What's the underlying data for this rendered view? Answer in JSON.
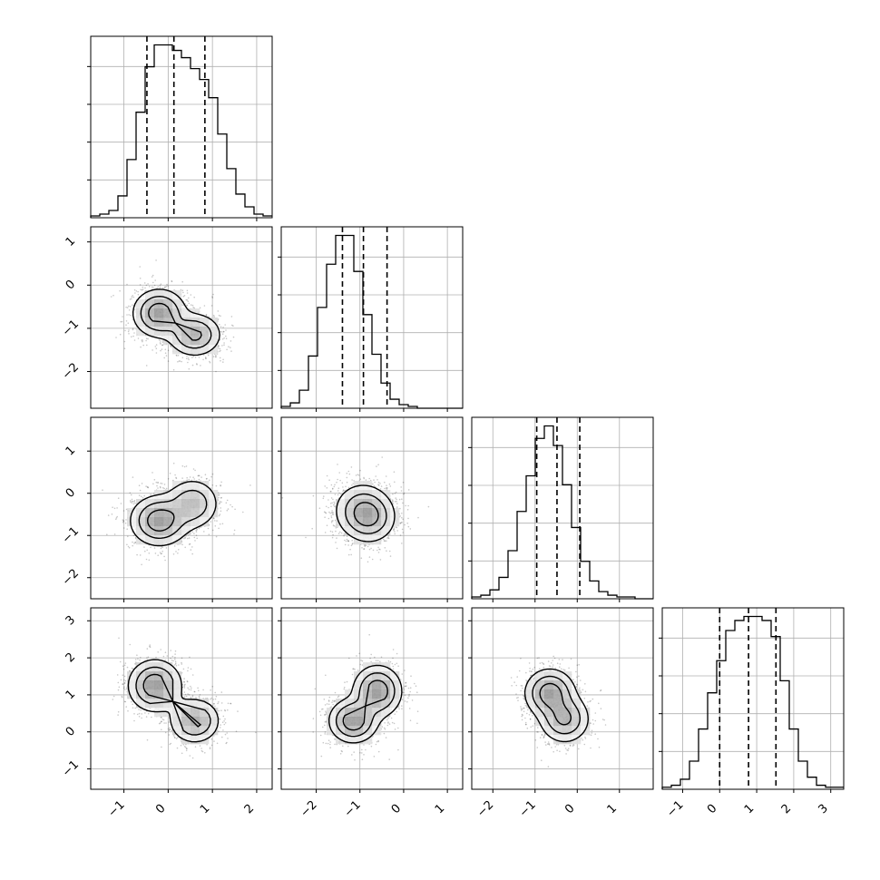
{
  "chart_data": {
    "type": "corner",
    "n_params": 4,
    "parameters": [
      {
        "label": "",
        "range": [
          -1.75,
          2.35
        ],
        "ticks": [
          -1,
          0,
          1,
          2
        ],
        "tick_labels": [
          "−1",
          "0",
          "1",
          "2"
        ],
        "quantiles": [
          -0.48,
          0.13,
          0.83
        ]
      },
      {
        "label": "",
        "range": [
          -2.8,
          1.35
        ],
        "ticks": [
          -2,
          -1,
          0,
          1
        ],
        "tick_labels": [
          "−2",
          "−1",
          "0",
          "1"
        ],
        "quantiles": [
          -1.4,
          -0.92,
          -0.38
        ]
      },
      {
        "label": "",
        "range": [
          -2.5,
          1.8
        ],
        "ticks": [
          -2,
          -1,
          0,
          1
        ],
        "tick_labels": [
          "−2",
          "−1",
          "0",
          "1"
        ],
        "quantiles": [
          -0.96,
          -0.48,
          0.06
        ]
      },
      {
        "label": "",
        "range": [
          -1.55,
          3.35
        ],
        "ticks": [
          -1,
          0,
          1,
          2,
          3
        ],
        "tick_labels": [
          "−1",
          "0",
          "1",
          "2",
          "3"
        ],
        "quantiles": [
          0.0,
          0.78,
          1.52
        ]
      }
    ],
    "histograms": [
      {
        "edges_start": -1.75,
        "bin_width": 0.205,
        "counts": [
          1,
          2,
          4,
          12,
          32,
          58,
          83,
          95,
          95,
          92,
          88,
          82,
          76,
          66,
          46,
          27,
          13,
          6,
          2,
          1
        ]
      },
      {
        "edges_start": -2.8,
        "bin_width": 0.2075,
        "counts": [
          1,
          3,
          10,
          29,
          56,
          80,
          96,
          96,
          76,
          52,
          30,
          14,
          5,
          2,
          1,
          0,
          0,
          0,
          0,
          0
        ]
      },
      {
        "edges_start": -2.5,
        "bin_width": 0.215,
        "counts": [
          1,
          2,
          5,
          12,
          27,
          49,
          69,
          90,
          97,
          86,
          64,
          40,
          21,
          10,
          4,
          2,
          1,
          1,
          0,
          0
        ]
      },
      {
        "edges_start": -1.55,
        "bin_width": 0.245,
        "counts": [
          1,
          2,
          5,
          14,
          30,
          48,
          64,
          79,
          84,
          86,
          86,
          84,
          76,
          54,
          30,
          14,
          6,
          2,
          1,
          1
        ]
      }
    ],
    "pairs": [
      {
        "x": 0,
        "y": 1,
        "ylim": [
          -2.85,
          1.35
        ],
        "yticks": [
          -2,
          -1,
          0,
          1
        ],
        "ytick_labels": [
          "−2",
          "−1",
          "0",
          "1"
        ],
        "modes": [
          {
            "x": -0.2,
            "y": -0.65,
            "sx": 0.3,
            "sy": 0.28,
            "w": 0.55
          },
          {
            "x": 0.6,
            "y": -1.15,
            "sx": 0.3,
            "sy": 0.25,
            "w": 0.45
          }
        ]
      },
      {
        "x": 0,
        "y": 2,
        "ylim": [
          -2.5,
          1.8
        ],
        "yticks": [
          -2,
          -1,
          0,
          1
        ],
        "ytick_labels": [
          "−2",
          "−1",
          "0",
          "1"
        ],
        "modes": [
          {
            "x": -0.2,
            "y": -0.65,
            "sx": 0.33,
            "sy": 0.3,
            "w": 0.6
          },
          {
            "x": 0.55,
            "y": -0.25,
            "sx": 0.3,
            "sy": 0.3,
            "w": 0.4
          }
        ]
      },
      {
        "x": 1,
        "y": 2,
        "ylim": [
          -2.5,
          1.8
        ],
        "yticks": [
          -2,
          -1,
          0,
          1
        ],
        "ytick_labels": [
          "−2",
          "−1",
          "0",
          "1"
        ],
        "modes": [
          {
            "x": -0.95,
            "y": -0.4,
            "sx": 0.33,
            "sy": 0.33,
            "w": 0.55
          },
          {
            "x": -0.75,
            "y": -0.6,
            "sx": 0.3,
            "sy": 0.3,
            "w": 0.45
          }
        ]
      },
      {
        "x": 0,
        "y": 3,
        "ylim": [
          -1.55,
          3.35
        ],
        "yticks": [
          -1,
          0,
          1,
          2,
          3
        ],
        "ytick_labels": [
          "−1",
          "0",
          "1",
          "2",
          "3"
        ],
        "modes": [
          {
            "x": -0.3,
            "y": 1.25,
            "sx": 0.3,
            "sy": 0.35,
            "w": 0.55
          },
          {
            "x": 0.6,
            "y": 0.3,
            "sx": 0.28,
            "sy": 0.3,
            "w": 0.45
          }
        ]
      },
      {
        "x": 1,
        "y": 3,
        "ylim": [
          -1.55,
          3.35
        ],
        "yticks": [
          -1,
          0,
          1,
          2,
          3
        ],
        "ytick_labels": [
          "−1",
          "0",
          "1",
          "2",
          "3"
        ],
        "modes": [
          {
            "x": -1.15,
            "y": 0.3,
            "sx": 0.28,
            "sy": 0.3,
            "w": 0.5
          },
          {
            "x": -0.6,
            "y": 1.1,
            "sx": 0.28,
            "sy": 0.35,
            "w": 0.5
          }
        ]
      },
      {
        "x": 2,
        "y": 3,
        "ylim": [
          -1.55,
          3.35
        ],
        "yticks": [
          -1,
          0,
          1,
          2,
          3
        ],
        "ytick_labels": [
          "−1",
          "0",
          "1",
          "2",
          "3"
        ],
        "modes": [
          {
            "x": -0.65,
            "y": 1.05,
            "sx": 0.3,
            "sy": 0.33,
            "w": 0.55
          },
          {
            "x": -0.3,
            "y": 0.35,
            "sx": 0.3,
            "sy": 0.33,
            "w": 0.45
          }
        ]
      }
    ],
    "contour_levels": 3,
    "grid": true,
    "legend": "none",
    "title": "",
    "xlabel": "",
    "ylabel": ""
  }
}
